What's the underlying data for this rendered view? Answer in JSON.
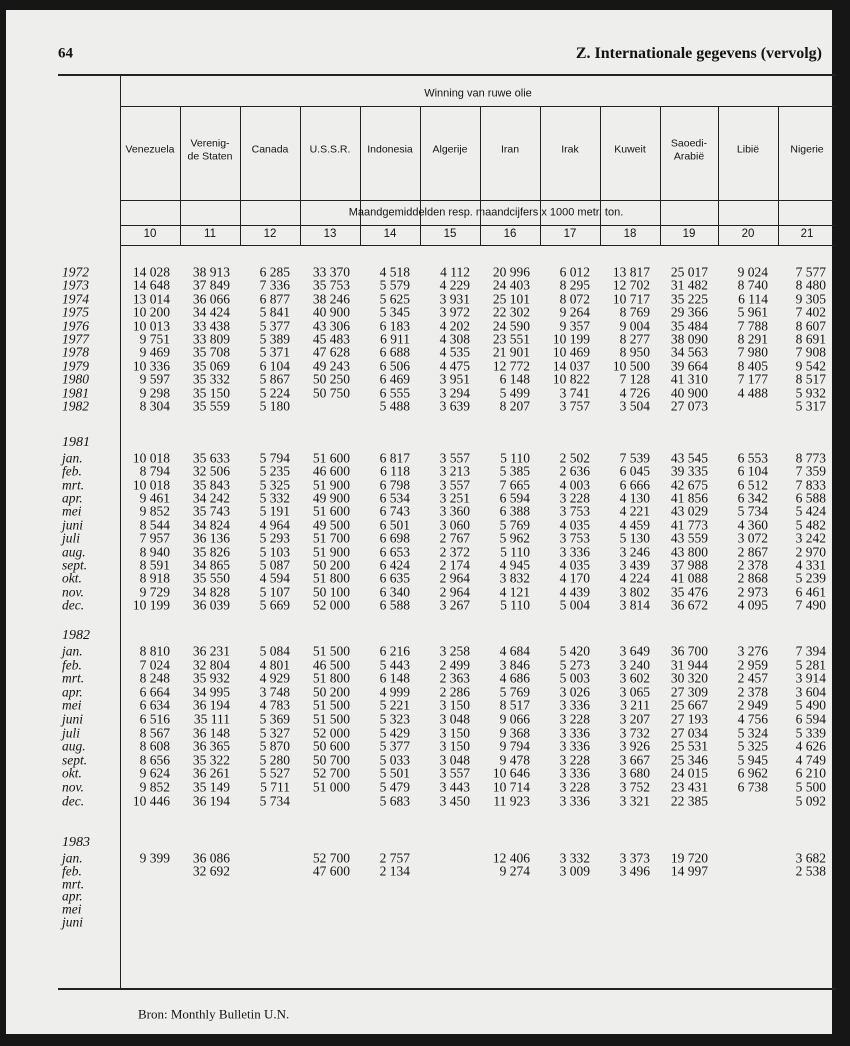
{
  "header": {
    "page_number": "64",
    "title": "Z. Internationale gegevens (vervolg)"
  },
  "table": {
    "group_title": "Winning van ruwe olie",
    "columns": [
      [
        "Venezuela"
      ],
      [
        "Verenig-",
        "de Staten"
      ],
      [
        "Canada"
      ],
      [
        "U.S.S.R."
      ],
      [
        "Indonesia"
      ],
      [
        "Algerije"
      ],
      [
        "Iran"
      ],
      [
        "Irak"
      ],
      [
        "Kuweit"
      ],
      [
        "Saoedi-",
        "Arabië"
      ],
      [
        "Libië"
      ],
      [
        "Nigerie"
      ]
    ],
    "unit_note": "Maandgemiddelden resp. maandcijfers x 1000 metr. ton.",
    "column_numbers": [
      "10",
      "11",
      "12",
      "13",
      "14",
      "15",
      "16",
      "17",
      "18",
      "19",
      "20",
      "21"
    ],
    "sections": [
      {
        "rows": [
          {
            "label": "1972",
            "values": [
              "14 028",
              "38 913",
              "6 285",
              "33 370",
              "4 518",
              "4 112",
              "20 996",
              "6 012",
              "13 817",
              "25 017",
              "9 024",
              "7 577"
            ]
          },
          {
            "label": "1973",
            "values": [
              "14 648",
              "37 849",
              "7 336",
              "35 753",
              "5 579",
              "4 229",
              "24 403",
              "8 295",
              "12 702",
              "31 482",
              "8 740",
              "8 480"
            ]
          },
          {
            "label": "1974",
            "values": [
              "13 014",
              "36 066",
              "6 877",
              "38 246",
              "5 625",
              "3 931",
              "25 101",
              "8 072",
              "10 717",
              "35 225",
              "6 114",
              "9 305"
            ]
          },
          {
            "label": "1975",
            "values": [
              "10 200",
              "34 424",
              "5 841",
              "40 900",
              "5 345",
              "3 972",
              "22 302",
              "9 264",
              "8 769",
              "29 366",
              "5 961",
              "7 402"
            ]
          },
          {
            "label": "1976",
            "values": [
              "10 013",
              "33 438",
              "5 377",
              "43 306",
              "6 183",
              "4 202",
              "24 590",
              "9 357",
              "9 004",
              "35 484",
              "7 788",
              "8 607"
            ]
          },
          {
            "label": "1977",
            "values": [
              "9 751",
              "33 809",
              "5 389",
              "45 483",
              "6 911",
              "4 308",
              "23 551",
              "10 199",
              "8 277",
              "38 090",
              "8 291",
              "8 691"
            ]
          },
          {
            "label": "1978",
            "values": [
              "9 469",
              "35 708",
              "5 371",
              "47 628",
              "6 688",
              "4 535",
              "21 901",
              "10 469",
              "8 950",
              "34 563",
              "7 980",
              "7 908"
            ]
          },
          {
            "label": "1979",
            "values": [
              "10 336",
              "35 069",
              "6 104",
              "49 243",
              "6 506",
              "4 475",
              "12 772",
              "14 037",
              "10 500",
              "39 664",
              "8 405",
              "9 542"
            ]
          },
          {
            "label": "1980",
            "values": [
              "9 597",
              "35 332",
              "5 867",
              "50 250",
              "6 469",
              "3 951",
              "6 148",
              "10 822",
              "7 128",
              "41 310",
              "7 177",
              "8 517"
            ]
          },
          {
            "label": "1981",
            "values": [
              "9 298",
              "35 150",
              "5 224",
              "50 750",
              "6 555",
              "3 294",
              "5 499",
              "3 741",
              "4 726",
              "40 900",
              "4 488",
              "5 932"
            ]
          },
          {
            "label": "1982",
            "values": [
              "8 304",
              "35 559",
              "5 180",
              null,
              "5 488",
              "3 639",
              "8 207",
              "3 757",
              "3 504",
              "27 073",
              null,
              "5 317"
            ]
          }
        ]
      },
      {
        "label": "1981",
        "rows": [
          {
            "label": "jan.",
            "values": [
              "10 018",
              "35 633",
              "5 794",
              "51 600",
              "6 817",
              "3 557",
              "5 110",
              "2 502",
              "7 539",
              "43 545",
              "6 553",
              "8 773"
            ]
          },
          {
            "label": "feb.",
            "values": [
              "8 794",
              "32 506",
              "5 235",
              "46 600",
              "6 118",
              "3 213",
              "5 385",
              "2 636",
              "6 045",
              "39 335",
              "6 104",
              "7 359"
            ]
          },
          {
            "label": "mrt.",
            "values": [
              "10 018",
              "35 843",
              "5 325",
              "51 900",
              "6 798",
              "3 557",
              "7 665",
              "4 003",
              "6 666",
              "42 675",
              "6 512",
              "7 833"
            ]
          },
          {
            "label": "apr.",
            "values": [
              "9 461",
              "34 242",
              "5 332",
              "49 900",
              "6 534",
              "3 251",
              "6 594",
              "3 228",
              "4 130",
              "41 856",
              "6 342",
              "6 588"
            ]
          },
          {
            "label": "mei",
            "values": [
              "9 852",
              "35 743",
              "5 191",
              "51 600",
              "6 743",
              "3 360",
              "6 388",
              "3 753",
              "4 221",
              "43 029",
              "5 734",
              "5 424"
            ]
          },
          {
            "label": "juni",
            "values": [
              "8 544",
              "34 824",
              "4 964",
              "49 500",
              "6 501",
              "3 060",
              "5 769",
              "4 035",
              "4 459",
              "41 773",
              "4 360",
              "5 482"
            ]
          },
          {
            "label": "juli",
            "values": [
              "7 957",
              "36 136",
              "5 293",
              "51 700",
              "6 698",
              "2 767",
              "5 962",
              "3 753",
              "5 130",
              "43 559",
              "3 072",
              "3 242"
            ]
          },
          {
            "label": "aug.",
            "values": [
              "8 940",
              "35 826",
              "5 103",
              "51 900",
              "6 653",
              "2 372",
              "5 110",
              "3 336",
              "3 246",
              "43 800",
              "2 867",
              "2 970"
            ]
          },
          {
            "label": "sept.",
            "values": [
              "8 591",
              "34 865",
              "5 087",
              "50 200",
              "6 424",
              "2 174",
              "4 945",
              "4 035",
              "3 439",
              "37 988",
              "2 378",
              "4 331"
            ]
          },
          {
            "label": "okt.",
            "values": [
              "8 918",
              "35 550",
              "4 594",
              "51 800",
              "6 635",
              "2 964",
              "3 832",
              "4 170",
              "4 224",
              "41 088",
              "2 868",
              "5 239"
            ]
          },
          {
            "label": "nov.",
            "values": [
              "9 729",
              "34 828",
              "5 107",
              "50 100",
              "6 340",
              "2 964",
              "4 121",
              "4 439",
              "3 802",
              "35 476",
              "2 973",
              "6 461"
            ]
          },
          {
            "label": "dec.",
            "values": [
              "10 199",
              "36 039",
              "5 669",
              "52 000",
              "6 588",
              "3 267",
              "5 110",
              "5 004",
              "3 814",
              "36 672",
              "4 095",
              "7 490"
            ]
          }
        ]
      },
      {
        "label": "1982",
        "rows": [
          {
            "label": "jan.",
            "values": [
              "8 810",
              "36 231",
              "5 084",
              "51 500",
              "6 216",
              "3 258",
              "4 684",
              "5 420",
              "3 649",
              "36 700",
              "3 276",
              "7 394"
            ]
          },
          {
            "label": "feb.",
            "values": [
              "7 024",
              "32 804",
              "4 801",
              "46 500",
              "5 443",
              "2 499",
              "3 846",
              "5 273",
              "3 240",
              "31 944",
              "2 959",
              "5 281"
            ]
          },
          {
            "label": "mrt.",
            "values": [
              "8 248",
              "35 932",
              "4 929",
              "51 800",
              "6 148",
              "2 363",
              "4 686",
              "5 003",
              "3 602",
              "30 320",
              "2 457",
              "3 914"
            ]
          },
          {
            "label": "apr.",
            "values": [
              "6 664",
              "34 995",
              "3 748",
              "50 200",
              "4 999",
              "2 286",
              "5 769",
              "3 026",
              "3 065",
              "27 309",
              "2 378",
              "3 604"
            ]
          },
          {
            "label": "mei",
            "values": [
              "6 634",
              "36 194",
              "4 783",
              "51 500",
              "5 221",
              "3 150",
              "8 517",
              "3 336",
              "3 211",
              "25 667",
              "2 949",
              "5 490"
            ]
          },
          {
            "label": "juni",
            "values": [
              "6 516",
              "35 111",
              "5 369",
              "51 500",
              "5 323",
              "3 048",
              "9 066",
              "3 228",
              "3 207",
              "27 193",
              "4 756",
              "6 594"
            ]
          },
          {
            "label": "juli",
            "values": [
              "8 567",
              "36 148",
              "5 327",
              "52 000",
              "5 429",
              "3 150",
              "9 368",
              "3 336",
              "3 732",
              "27 034",
              "5 324",
              "5 339"
            ]
          },
          {
            "label": "aug.",
            "values": [
              "8 608",
              "36 365",
              "5 870",
              "50 600",
              "5 377",
              "3 150",
              "9 794",
              "3 336",
              "3 926",
              "25 531",
              "5 325",
              "4 626"
            ]
          },
          {
            "label": "sept.",
            "values": [
              "8 656",
              "35 322",
              "5 280",
              "50 700",
              "5 033",
              "3 048",
              "9 478",
              "3 228",
              "3 667",
              "25 346",
              "5 945",
              "4 749"
            ]
          },
          {
            "label": "okt.",
            "values": [
              "9 624",
              "36 261",
              "5 527",
              "52 700",
              "5 501",
              "3 557",
              "10 646",
              "3 336",
              "3 680",
              "24 015",
              "6 962",
              "6 210"
            ]
          },
          {
            "label": "nov.",
            "values": [
              "9 852",
              "35 149",
              "5 711",
              "51 000",
              "5 479",
              "3 443",
              "10 714",
              "3 228",
              "3 752",
              "23 431",
              "6 738",
              "5 500"
            ]
          },
          {
            "label": "dec.",
            "values": [
              "10 446",
              "36 194",
              "5 734",
              null,
              "5 683",
              "3 450",
              "11 923",
              "3 336",
              "3 321",
              "22 385",
              null,
              "5 092"
            ]
          }
        ]
      },
      {
        "label": "1983",
        "rows": [
          {
            "label": "jan.",
            "values": [
              "9 399",
              "36 086",
              null,
              "52 700",
              "2 757",
              null,
              "12 406",
              "3 332",
              "3 373",
              "19 720",
              null,
              "3 682"
            ]
          },
          {
            "label": "feb.",
            "values": [
              null,
              "32 692",
              null,
              "47 600",
              "2 134",
              null,
              "9 274",
              "3 009",
              "3 496",
              "14 997",
              null,
              "2 538"
            ]
          },
          {
            "label": "mrt.",
            "values": [
              null,
              null,
              null,
              null,
              null,
              null,
              null,
              null,
              null,
              null,
              null,
              null
            ]
          },
          {
            "label": "apr.",
            "values": [
              null,
              null,
              null,
              null,
              null,
              null,
              null,
              null,
              null,
              null,
              null,
              null
            ]
          },
          {
            "label": "mei",
            "values": [
              null,
              null,
              null,
              null,
              null,
              null,
              null,
              null,
              null,
              null,
              null,
              null
            ]
          },
          {
            "label": "juni",
            "values": [
              null,
              null,
              null,
              null,
              null,
              null,
              null,
              null,
              null,
              null,
              null,
              null
            ]
          }
        ]
      }
    ]
  },
  "footer": {
    "source": "Bron: Monthly Bulletin U.N."
  }
}
